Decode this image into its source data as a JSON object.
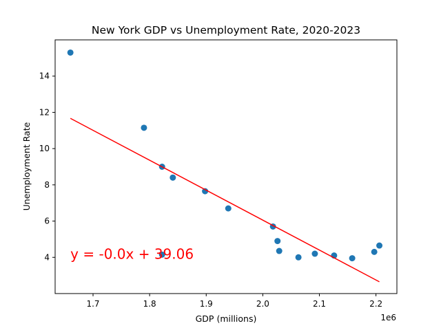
{
  "chart_data": {
    "type": "scatter",
    "title": "New York GDP vs Unemployment Rate, 2020-2023",
    "xlabel": "GDP (millions)",
    "ylabel": "Unemployment Rate",
    "x_offset_label": "1e6",
    "xlim": [
      1.633,
      2.237
    ],
    "ylim": [
      2.0,
      16.0
    ],
    "x_ticks": [
      1.7,
      1.8,
      1.9,
      2.0,
      2.1,
      2.2
    ],
    "x_tick_labels": [
      "1.7",
      "1.8",
      "1.9",
      "2.0",
      "2.1",
      "2.2"
    ],
    "y_ticks": [
      4,
      6,
      8,
      10,
      12,
      14
    ],
    "y_tick_labels": [
      "4",
      "6",
      "8",
      "10",
      "12",
      "14"
    ],
    "grid": false,
    "series": [
      {
        "kind": "scatter",
        "color": "#1f77b4",
        "x": [
          1.66,
          1.79,
          1.822,
          1.822,
          1.841,
          1.898,
          1.939,
          2.018,
          2.026,
          2.029,
          2.063,
          2.092,
          2.126,
          2.158,
          2.197,
          2.206
        ],
        "y": [
          15.3,
          11.15,
          4.15,
          9.0,
          8.4,
          7.65,
          6.7,
          5.7,
          4.9,
          4.35,
          4.0,
          4.2,
          4.1,
          3.95,
          4.3,
          4.65
        ]
      },
      {
        "kind": "line",
        "color": "#ff0000",
        "x": [
          1.66,
          2.206
        ],
        "y": [
          11.67,
          2.65
        ]
      }
    ],
    "annotation": {
      "text": "y = -0.0x + 39.06",
      "color": "#ff0000",
      "x": 1.66,
      "y": 4.0
    }
  }
}
